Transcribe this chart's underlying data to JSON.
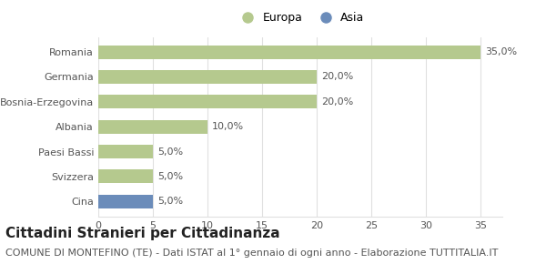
{
  "categories": [
    "Romania",
    "Germania",
    "Bosnia-Erzegovina",
    "Albania",
    "Paesi Bassi",
    "Svizzera",
    "Cina"
  ],
  "values": [
    35.0,
    20.0,
    20.0,
    10.0,
    5.0,
    5.0,
    5.0
  ],
  "bar_colors": [
    "#b5c98e",
    "#b5c98e",
    "#b5c98e",
    "#b5c98e",
    "#b5c98e",
    "#b5c98e",
    "#6b8cba"
  ],
  "labels": [
    "35,0%",
    "20,0%",
    "20,0%",
    "10,0%",
    "5,0%",
    "5,0%",
    "5,0%"
  ],
  "legend_labels": [
    "Europa",
    "Asia"
  ],
  "legend_colors": [
    "#b5c98e",
    "#6b8cba"
  ],
  "xlim": [
    0,
    37
  ],
  "xticks": [
    0,
    5,
    10,
    15,
    20,
    25,
    30,
    35
  ],
  "title": "Cittadini Stranieri per Cittadinanza",
  "subtitle": "COMUNE DI MONTEFINO (TE) - Dati ISTAT al 1° gennaio di ogni anno - Elaborazione TUTTITALIA.IT",
  "title_fontsize": 11,
  "subtitle_fontsize": 8,
  "label_fontsize": 8,
  "tick_fontsize": 8,
  "legend_fontsize": 9,
  "background_color": "#ffffff",
  "grid_color": "#e0e0e0"
}
